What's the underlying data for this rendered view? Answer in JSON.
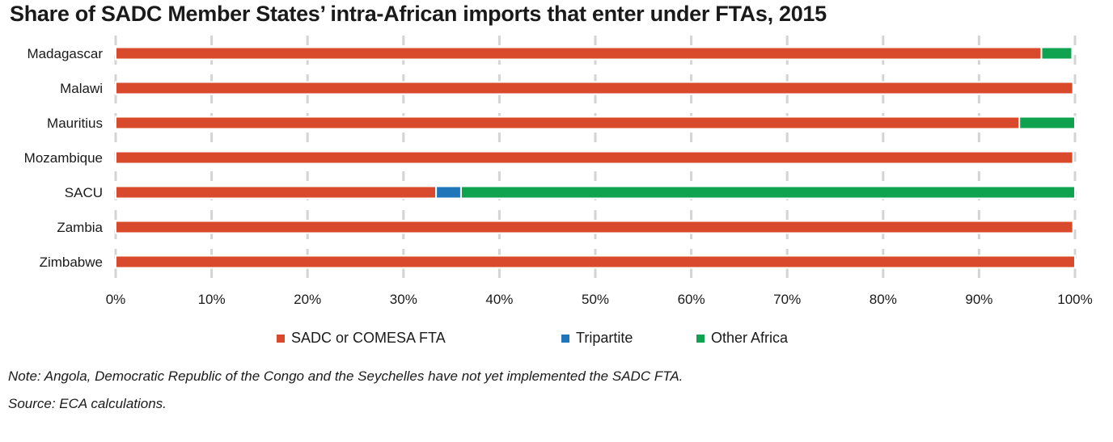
{
  "chart_data": {
    "type": "bar",
    "orientation": "horizontal",
    "stacked": true,
    "title": "Share of SADC Member States’ intra-African imports that enter under FTAs, 2015",
    "categories": [
      "Madagascar",
      "Malawi",
      "Mauritius",
      "Mozambique",
      "SACU",
      "Zambia",
      "Zimbabwe"
    ],
    "series": [
      {
        "name": "SADC or COMESA FTA",
        "color": "#d9492b",
        "values": [
          96.5,
          99.8,
          94.2,
          99.8,
          33.4,
          99.8,
          100
        ]
      },
      {
        "name": "Tripartite",
        "color": "#1f77b9",
        "values": [
          0,
          0,
          0,
          0,
          2.6,
          0,
          0
        ]
      },
      {
        "name": "Other Africa",
        "color": "#0fa34f",
        "values": [
          3.2,
          0,
          5.8,
          0,
          64.0,
          0,
          0
        ]
      }
    ],
    "xlim": [
      0,
      100
    ],
    "x_ticks": [
      "0%",
      "10%",
      "20%",
      "30%",
      "40%",
      "50%",
      "60%",
      "70%",
      "80%",
      "90%",
      "100%"
    ],
    "grid": "vertical dashed",
    "legend_position": "bottom"
  },
  "note": "Note: Angola, Democratic Republic of the Congo and the Seychelles have not yet implemented the SADC FTA.",
  "source": "Source: ECA calculations."
}
